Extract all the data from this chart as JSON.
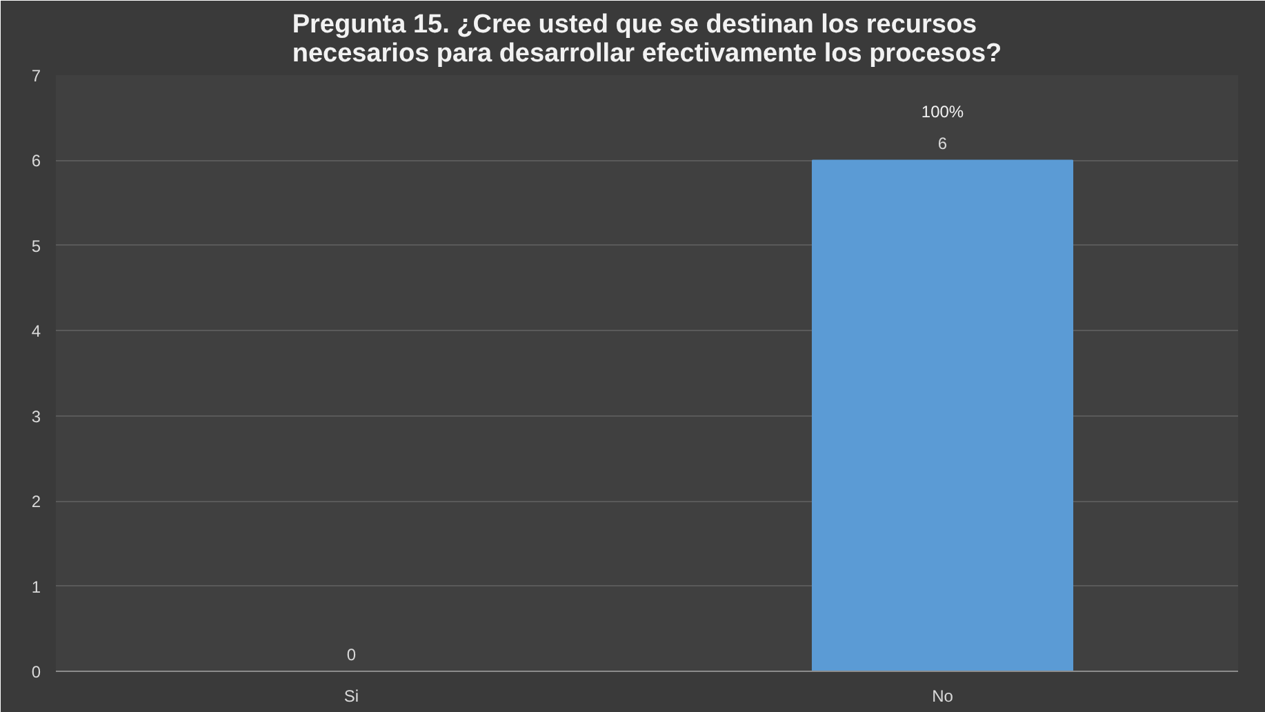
{
  "chart_data": {
    "type": "bar",
    "title": "Pregunta 15. ¿Cree usted que se destinan los recursos necesarios para desarrollar efectivamente los procesos?",
    "categories": [
      "Si",
      "No"
    ],
    "values": [
      0,
      6
    ],
    "color": "#5b9bd5",
    "value_labels": [
      "0",
      "6"
    ],
    "annotations": [
      {
        "text": "100%",
        "x": "No",
        "y": 6
      }
    ],
    "ylim": [
      0,
      7
    ],
    "yticks": [
      0,
      1,
      2,
      3,
      4,
      5,
      6,
      7
    ],
    "grid": "y"
  }
}
